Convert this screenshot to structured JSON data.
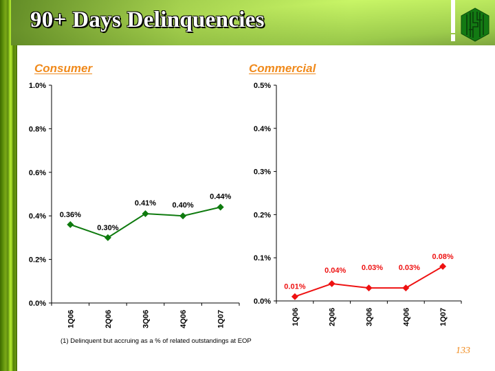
{
  "header": {
    "title": "90+ Days Delinquencies",
    "logo_icon": "hexagon-bank-logo-icon"
  },
  "footnote": "(1) Delinquent but accruing as a % of related outstandings at EOP",
  "page_number": "133",
  "colors": {
    "section_title": "#f08a1c",
    "consumer_series": "#0e7a0e",
    "commercial_series": "#ee1111",
    "header_green": "#c8f566"
  },
  "chart_data": [
    {
      "type": "line",
      "title": "Consumer",
      "categories": [
        "1Q06",
        "2Q06",
        "3Q06",
        "4Q06",
        "1Q07"
      ],
      "series": [
        {
          "name": "Consumer",
          "values": [
            0.36,
            0.3,
            0.41,
            0.4,
            0.44
          ],
          "marker": "diamond"
        }
      ],
      "data_labels": [
        "0.36%",
        "0.30%",
        "0.41%",
        "0.40%",
        "0.44%"
      ],
      "yticks": [
        "0.0%",
        "0.2%",
        "0.4%",
        "0.6%",
        "0.8%",
        "1.0%"
      ],
      "ytick_values": [
        0.0,
        0.2,
        0.4,
        0.6,
        0.8,
        1.0
      ],
      "ylim": [
        0,
        1.0
      ],
      "xlabel": "",
      "ylabel": "",
      "grid": false,
      "legend": "none"
    },
    {
      "type": "line",
      "title": "Commercial",
      "categories": [
        "1Q06",
        "2Q06",
        "3Q06",
        "4Q06",
        "1Q07"
      ],
      "series": [
        {
          "name": "Commercial",
          "values": [
            0.01,
            0.04,
            0.03,
            0.03,
            0.08
          ],
          "marker": "diamond"
        }
      ],
      "data_labels": [
        "0.01%",
        "0.04%",
        "0.03%",
        "0.03%",
        "0.08%"
      ],
      "yticks": [
        "0.0%",
        "0.1%",
        "0.2%",
        "0.3%",
        "0.4%",
        "0.5%"
      ],
      "ytick_values": [
        0.0,
        0.1,
        0.2,
        0.3,
        0.4,
        0.5
      ],
      "ylim": [
        0,
        0.5
      ],
      "xlabel": "",
      "ylabel": "",
      "grid": false,
      "legend": "none"
    }
  ]
}
